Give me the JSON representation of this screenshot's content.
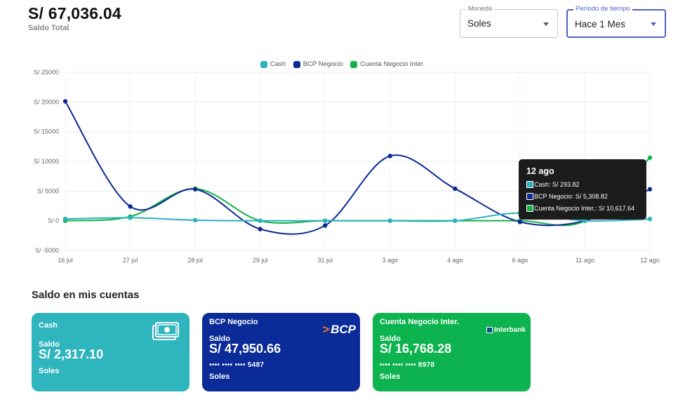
{
  "header": {
    "total_amount": "S/ 67,036.04",
    "total_label": "Saldo Total"
  },
  "filters": {
    "currency": {
      "legend": "Moneda",
      "value": "Soles"
    },
    "period": {
      "legend": "Período de tiempo",
      "value": "Hace 1 Mes"
    }
  },
  "colors": {
    "cash": "#2bb2bb",
    "bcp": "#0b2a94",
    "interbank": "#12b24b"
  },
  "chart_data": {
    "type": "line",
    "categories": [
      "16 jul",
      "27 jul",
      "28 jul",
      "29 jul",
      "31 jul",
      "3 ago",
      "4 ago",
      "6 ago",
      "11 ago",
      "12 ago"
    ],
    "y_ticks": [
      "S/ 25000",
      "S/ 20000",
      "S/ 15000",
      "S/ 10000",
      "S/ 5000",
      "S/ 0",
      "S/ -5000"
    ],
    "ylim": [
      -5000,
      25000
    ],
    "grid": true,
    "legend_position": "top",
    "series": [
      {
        "name": "Cash",
        "values": [
          300,
          500,
          100,
          0,
          0,
          0,
          0,
          1300,
          0,
          293.82
        ]
      },
      {
        "name": "BCP Negocio",
        "values": [
          20100,
          2400,
          5300,
          -1400,
          -800,
          10900,
          5400,
          -200,
          0,
          5308.82
        ]
      },
      {
        "name": "Cuenta Negocio Inter.",
        "values": [
          0,
          700,
          5400,
          0,
          0,
          0,
          0,
          0,
          0,
          10617.64
        ]
      }
    ],
    "tooltip": {
      "title": "12 ago",
      "rows": [
        {
          "label": "Cash: S/ 293.82"
        },
        {
          "label": "BCP Negocio: S/ 5,308.82"
        },
        {
          "label": "Cuenta Negocio Inter.: S/ 10,617.64"
        }
      ]
    }
  },
  "accounts_section": {
    "title": "Saldo en mis cuentas"
  },
  "accounts": [
    {
      "name": "Cash",
      "saldo_label": "Saldo",
      "amount": "S/ 2,317.10",
      "masked": "",
      "currency": "Soles",
      "icon": "cash-icon"
    },
    {
      "name": "BCP Negocio",
      "saldo_label": "Saldo",
      "amount": "S/ 47,950.66",
      "masked": "•••• •••• •••• 5487",
      "currency": "Soles",
      "logo": "BCP"
    },
    {
      "name": "Cuenta Negocio Inter.",
      "saldo_label": "Saldo",
      "amount": "S/ 16,768.28",
      "masked": "•••• •••• •••• 8978",
      "currency": "Soles",
      "logo": "Interbank"
    }
  ]
}
